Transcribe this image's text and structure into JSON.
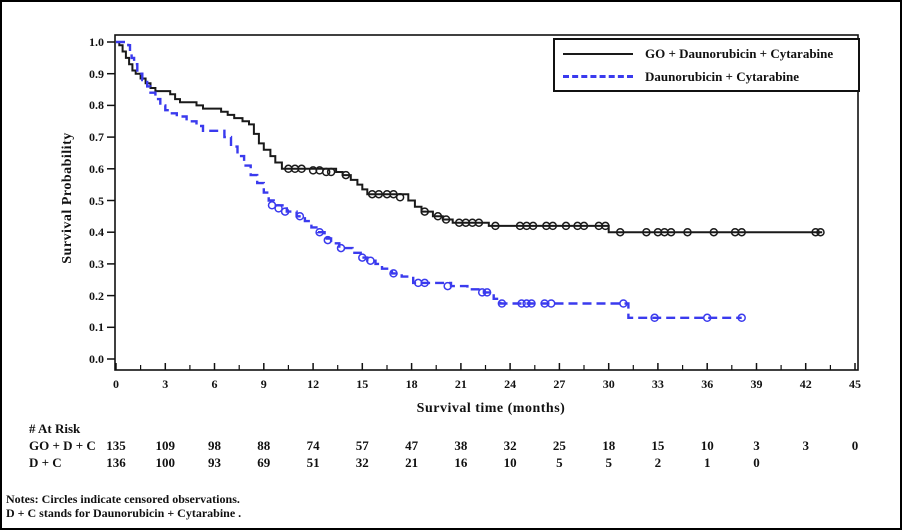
{
  "figure": {
    "ylabel": "Survival Probability",
    "xlabel": "Survival time (months)"
  },
  "chart_data": {
    "type": "line",
    "subtype": "kaplan-meier-step",
    "title": "",
    "xlabel": "Survival time (months)",
    "ylabel": "Survival Probability",
    "xlim": [
      0,
      45
    ],
    "ylim": [
      0.0,
      1.0
    ],
    "xticks": [
      0,
      3,
      6,
      9,
      12,
      15,
      18,
      21,
      24,
      27,
      30,
      33,
      36,
      39,
      42,
      45
    ],
    "yticks": [
      0.0,
      0.1,
      0.2,
      0.3,
      0.4,
      0.5,
      0.6,
      0.7,
      0.8,
      0.9,
      1.0
    ],
    "grid": false,
    "legend_position": "top-right",
    "series": [
      {
        "name": "GO + Daunorubicin + Cytarabine",
        "color": "#1a1a1a",
        "line_style": "solid",
        "steps": [
          [
            0,
            1.0
          ],
          [
            0.2,
            0.99
          ],
          [
            0.4,
            0.97
          ],
          [
            0.6,
            0.95
          ],
          [
            0.8,
            0.93
          ],
          [
            1.0,
            0.91
          ],
          [
            1.2,
            0.9
          ],
          [
            1.5,
            0.885
          ],
          [
            1.8,
            0.87
          ],
          [
            2.1,
            0.855
          ],
          [
            2.4,
            0.845
          ],
          [
            3.3,
            0.835
          ],
          [
            3.6,
            0.82
          ],
          [
            3.9,
            0.81
          ],
          [
            4.9,
            0.8
          ],
          [
            5.3,
            0.79
          ],
          [
            6.4,
            0.78
          ],
          [
            6.8,
            0.77
          ],
          [
            7.2,
            0.76
          ],
          [
            7.7,
            0.75
          ],
          [
            8.1,
            0.74
          ],
          [
            8.4,
            0.71
          ],
          [
            8.7,
            0.68
          ],
          [
            9.0,
            0.66
          ],
          [
            9.4,
            0.64
          ],
          [
            9.7,
            0.62
          ],
          [
            10.1,
            0.6
          ],
          [
            13.4,
            0.59
          ],
          [
            13.8,
            0.58
          ],
          [
            14.3,
            0.565
          ],
          [
            14.7,
            0.55
          ],
          [
            15.0,
            0.535
          ],
          [
            15.3,
            0.52
          ],
          [
            17.8,
            0.5
          ],
          [
            18.2,
            0.48
          ],
          [
            18.6,
            0.465
          ],
          [
            19.3,
            0.45
          ],
          [
            19.9,
            0.44
          ],
          [
            20.5,
            0.43
          ],
          [
            22.7,
            0.42
          ],
          [
            30.0,
            0.4
          ],
          [
            43.0,
            0.4
          ]
        ],
        "censor_marks": [
          [
            10.5,
            0.6
          ],
          [
            10.9,
            0.6
          ],
          [
            11.3,
            0.6
          ],
          [
            12.0,
            0.595
          ],
          [
            12.4,
            0.595
          ],
          [
            12.8,
            0.59
          ],
          [
            13.1,
            0.59
          ],
          [
            14.0,
            0.58
          ],
          [
            15.6,
            0.52
          ],
          [
            16.0,
            0.52
          ],
          [
            16.5,
            0.52
          ],
          [
            16.9,
            0.52
          ],
          [
            17.3,
            0.51
          ],
          [
            18.8,
            0.465
          ],
          [
            19.6,
            0.45
          ],
          [
            20.1,
            0.44
          ],
          [
            20.9,
            0.43
          ],
          [
            21.3,
            0.43
          ],
          [
            21.7,
            0.43
          ],
          [
            22.1,
            0.43
          ],
          [
            23.1,
            0.42
          ],
          [
            24.6,
            0.42
          ],
          [
            25.0,
            0.42
          ],
          [
            25.4,
            0.42
          ],
          [
            26.2,
            0.42
          ],
          [
            26.6,
            0.42
          ],
          [
            27.4,
            0.42
          ],
          [
            28.1,
            0.42
          ],
          [
            28.5,
            0.42
          ],
          [
            29.4,
            0.42
          ],
          [
            29.8,
            0.42
          ],
          [
            30.7,
            0.4
          ],
          [
            32.3,
            0.4
          ],
          [
            33.0,
            0.4
          ],
          [
            33.4,
            0.4
          ],
          [
            33.8,
            0.4
          ],
          [
            34.8,
            0.4
          ],
          [
            36.4,
            0.4
          ],
          [
            37.7,
            0.4
          ],
          [
            38.1,
            0.4
          ],
          [
            42.6,
            0.4
          ],
          [
            42.9,
            0.4
          ]
        ]
      },
      {
        "name": "Daunorubicin + Cytarabine",
        "color": "#3a3aee",
        "line_style": "dashed",
        "steps": [
          [
            0,
            1.0
          ],
          [
            0.75,
            0.99
          ],
          [
            0.85,
            0.97
          ],
          [
            0.95,
            0.95
          ],
          [
            1.1,
            0.93
          ],
          [
            1.3,
            0.9
          ],
          [
            1.6,
            0.88
          ],
          [
            1.9,
            0.86
          ],
          [
            2.1,
            0.84
          ],
          [
            2.4,
            0.82
          ],
          [
            2.7,
            0.8
          ],
          [
            3.0,
            0.785
          ],
          [
            3.3,
            0.775
          ],
          [
            3.7,
            0.765
          ],
          [
            4.3,
            0.75
          ],
          [
            4.9,
            0.735
          ],
          [
            5.3,
            0.72
          ],
          [
            6.6,
            0.7
          ],
          [
            7.0,
            0.67
          ],
          [
            7.4,
            0.64
          ],
          [
            7.8,
            0.61
          ],
          [
            8.2,
            0.58
          ],
          [
            8.6,
            0.555
          ],
          [
            9.0,
            0.525
          ],
          [
            9.3,
            0.5
          ],
          [
            9.6,
            0.485
          ],
          [
            10.4,
            0.465
          ],
          [
            11.0,
            0.45
          ],
          [
            11.5,
            0.435
          ],
          [
            11.9,
            0.415
          ],
          [
            12.3,
            0.4
          ],
          [
            12.7,
            0.38
          ],
          [
            13.1,
            0.365
          ],
          [
            13.6,
            0.35
          ],
          [
            14.4,
            0.335
          ],
          [
            14.9,
            0.32
          ],
          [
            15.3,
            0.31
          ],
          [
            15.8,
            0.3
          ],
          [
            16.2,
            0.285
          ],
          [
            16.8,
            0.27
          ],
          [
            17.4,
            0.26
          ],
          [
            18.1,
            0.24
          ],
          [
            20.4,
            0.23
          ],
          [
            21.4,
            0.22
          ],
          [
            22.4,
            0.21
          ],
          [
            23.0,
            0.19
          ],
          [
            23.4,
            0.175
          ],
          [
            31.2,
            0.13
          ],
          [
            38.1,
            0.13
          ]
        ],
        "censor_marks": [
          [
            9.5,
            0.485
          ],
          [
            9.9,
            0.475
          ],
          [
            10.3,
            0.465
          ],
          [
            11.2,
            0.45
          ],
          [
            12.4,
            0.4
          ],
          [
            12.9,
            0.375
          ],
          [
            13.7,
            0.35
          ],
          [
            15.0,
            0.32
          ],
          [
            15.5,
            0.31
          ],
          [
            16.9,
            0.27
          ],
          [
            18.4,
            0.24
          ],
          [
            18.8,
            0.24
          ],
          [
            20.2,
            0.23
          ],
          [
            22.3,
            0.21
          ],
          [
            22.6,
            0.21
          ],
          [
            23.5,
            0.175
          ],
          [
            24.7,
            0.175
          ],
          [
            25.0,
            0.175
          ],
          [
            25.3,
            0.175
          ],
          [
            26.1,
            0.175
          ],
          [
            26.5,
            0.175
          ],
          [
            30.9,
            0.175
          ],
          [
            32.8,
            0.13
          ],
          [
            36.0,
            0.13
          ],
          [
            38.1,
            0.13
          ]
        ]
      }
    ],
    "risk_table": {
      "title": "# At Risk",
      "time_points": [
        0,
        3,
        6,
        9,
        12,
        15,
        18,
        21,
        24,
        27,
        30,
        33,
        36,
        39,
        42,
        45
      ],
      "rows": [
        {
          "label": "GO + D + C",
          "values": [
            135,
            109,
            98,
            88,
            74,
            57,
            47,
            38,
            32,
            25,
            18,
            15,
            10,
            3,
            3,
            0
          ]
        },
        {
          "label": "D + C",
          "values": [
            136,
            100,
            93,
            69,
            51,
            32,
            21,
            16,
            10,
            5,
            5,
            2,
            1,
            0
          ]
        }
      ]
    },
    "notes": [
      "Notes: Circles indicate censored observations.",
      "D + C stands for Daunorubicin + Cytarabine ."
    ]
  }
}
